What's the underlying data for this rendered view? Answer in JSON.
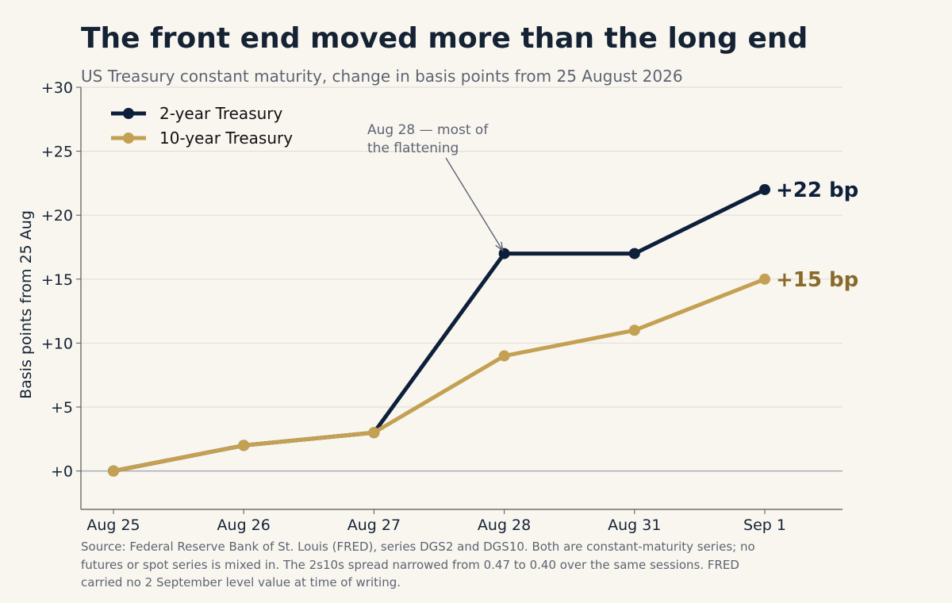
{
  "header": {
    "title": "The front end moved more than the long end",
    "subtitle": "US Treasury constant maturity, change in basis points from 25 August 2026"
  },
  "footer": {
    "source": "Source: Federal Reserve Bank of St. Louis (FRED), series DGS2 and DGS10. Both are constant-maturity series; no futures or spot series is mixed in. The 2s10s spread narrowed from 0.47 to 0.40 over the same sessions. FRED carried no 2 September level value at time of writing."
  },
  "chart_data": {
    "type": "line",
    "title": "The front end moved more than the long end",
    "subtitle": "US Treasury constant maturity, change in basis points from 25 August 2026",
    "xlabel": "",
    "ylabel": "Basis points from 25 Aug",
    "categories": [
      "Aug 25",
      "Aug 26",
      "Aug 27",
      "Aug 28",
      "Aug 31",
      "Sep 1"
    ],
    "ylim": [
      -3,
      30
    ],
    "yticks": [
      0,
      5,
      10,
      15,
      20,
      25,
      30
    ],
    "ytick_labels": [
      "+0",
      "+5",
      "+10",
      "+15",
      "+20",
      "+25",
      "+30"
    ],
    "grid": "horizontal",
    "legend_position": "top-left",
    "series": [
      {
        "name": "2-year Treasury",
        "values": [
          0,
          2,
          3,
          17,
          17,
          22
        ],
        "color": "#0e1f3a",
        "end_label": "+22 bp",
        "end_label_color": "#0e1f3a"
      },
      {
        "name": "10-year Treasury",
        "values": [
          0,
          2,
          3,
          9,
          11,
          15
        ],
        "color": "#c4a052",
        "end_label": "+15 bp",
        "end_label_color": "#8a6a2a"
      }
    ],
    "annotations": [
      {
        "lines": [
          "Aug 28 — most of",
          "the flattening"
        ],
        "target_category": "Aug 28",
        "target_value": 17
      }
    ]
  }
}
